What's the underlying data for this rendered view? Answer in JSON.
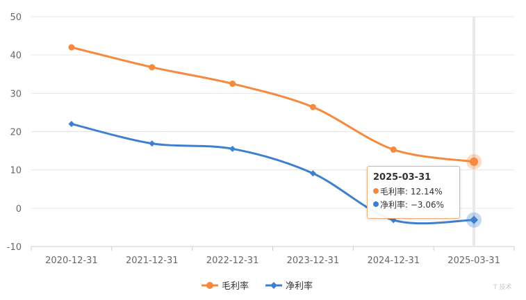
{
  "chart_data": {
    "type": "line",
    "categories": [
      "2020-12-31",
      "2021-12-31",
      "2022-12-31",
      "2023-12-31",
      "2024-12-31",
      "2025-03-31"
    ],
    "series": [
      {
        "name": "毛利率",
        "values": [
          42.0,
          36.8,
          32.5,
          26.4,
          15.3,
          12.14
        ],
        "color": "#f5893d",
        "marker": "circle"
      },
      {
        "name": "净利率",
        "values": [
          22.0,
          16.9,
          15.5,
          9.1,
          -3.1,
          -3.06
        ],
        "color": "#3f7fd0",
        "marker": "diamond"
      }
    ],
    "yticks": [
      50,
      40,
      30,
      20,
      10,
      0,
      -10
    ],
    "ylim": [
      -10,
      50
    ],
    "grid": true,
    "legend_position": "bottom-center",
    "highlight_index": 5,
    "tooltip": {
      "date": "2025-03-31",
      "rows": [
        {
          "label": "毛利率: 12.14%",
          "color": "#f5893d"
        },
        {
          "label": "净利率: −3.06%",
          "color": "#3f7fd0"
        }
      ]
    }
  },
  "watermark": "T 技术"
}
